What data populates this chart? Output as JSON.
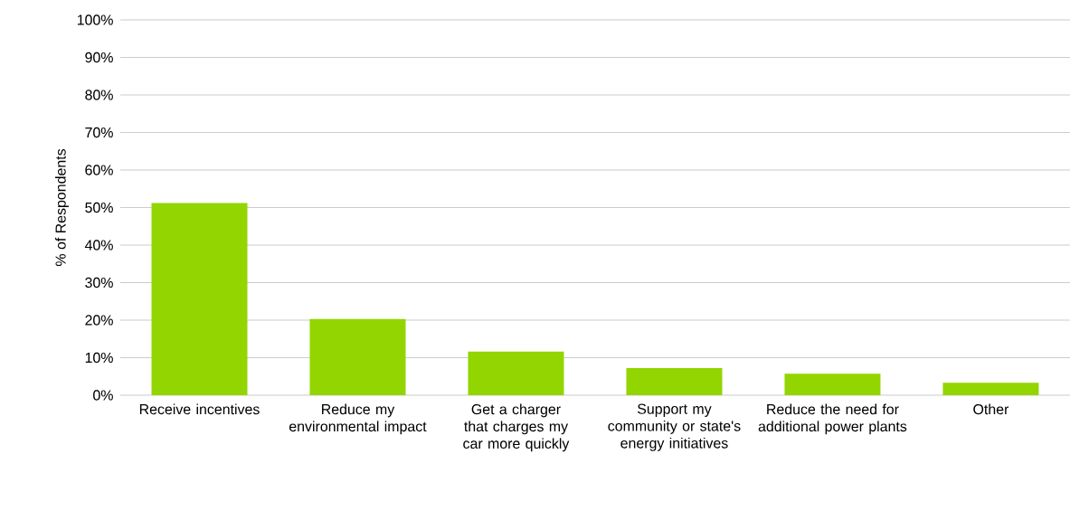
{
  "chart_data": {
    "type": "bar",
    "ylabel": "% of Respondents",
    "categories": [
      "Receive incentives",
      "Reduce my environmental impact",
      "Get a charger that charges my car more quickly",
      "Support my community or state's energy initiatives",
      "Reduce the need for additional power plants",
      "Other"
    ],
    "values": [
      51.2,
      20.3,
      11.6,
      7.2,
      5.7,
      3.3
    ],
    "color": "#92d500",
    "ylim": [
      0,
      100
    ],
    "yticks": [
      {
        "value": 0,
        "label": "0%"
      },
      {
        "value": 10,
        "label": "10%"
      },
      {
        "value": 20,
        "label": "20%"
      },
      {
        "value": 30,
        "label": "30%"
      },
      {
        "value": 40,
        "label": "40%"
      },
      {
        "value": 50,
        "label": "50%"
      },
      {
        "value": 60,
        "label": "60%"
      },
      {
        "value": 70,
        "label": "70%"
      },
      {
        "value": 80,
        "label": "80%"
      },
      {
        "value": 90,
        "label": "90%"
      },
      {
        "value": 100,
        "label": "100%"
      }
    ],
    "grid": "y"
  }
}
